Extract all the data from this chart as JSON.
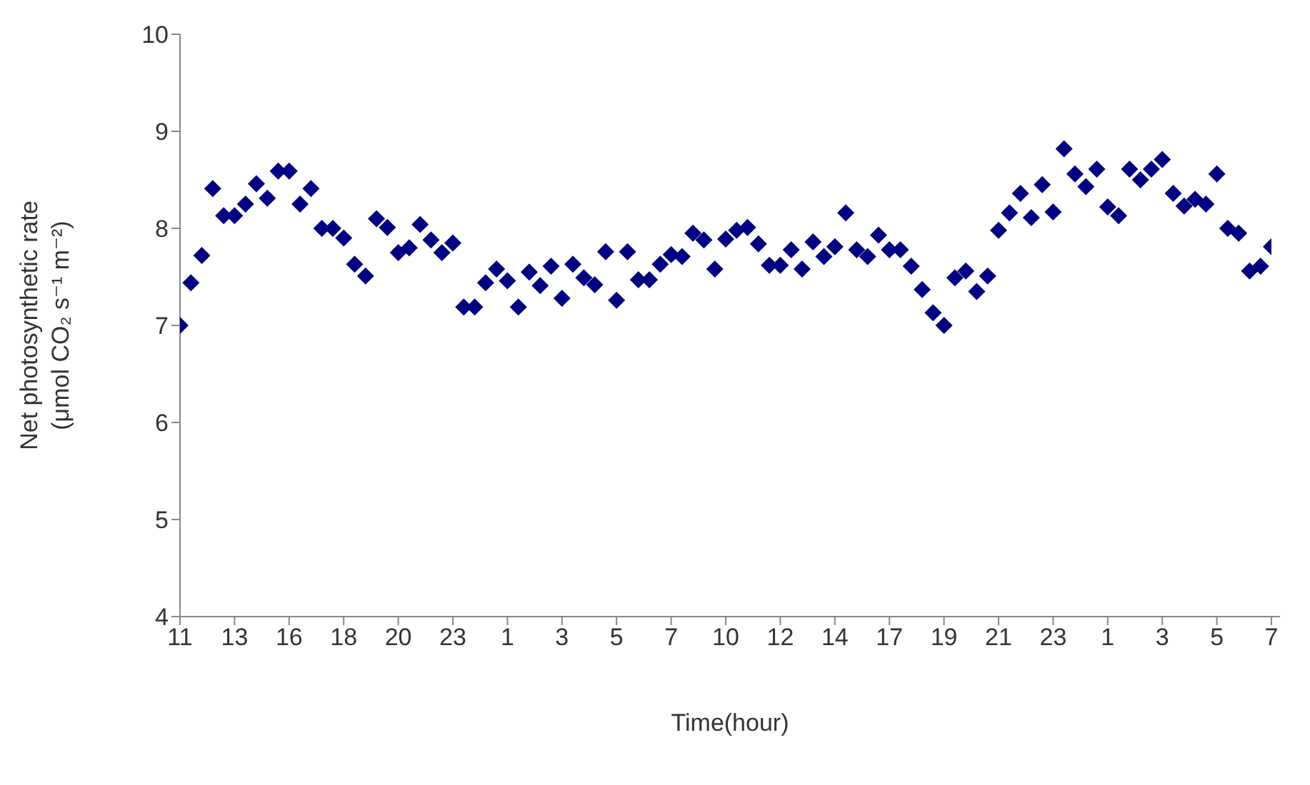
{
  "chart_data": {
    "type": "scatter",
    "xlabel": "Time(hour)",
    "ylabel": "Net photosynthetic rate\n(μmol CO₂ s⁻¹ m⁻²)",
    "categories": [
      "11",
      null,
      null,
      null,
      null,
      "13",
      null,
      null,
      null,
      null,
      "16",
      null,
      null,
      null,
      null,
      "18",
      null,
      null,
      null,
      null,
      "20",
      null,
      null,
      null,
      null,
      "23",
      null,
      null,
      null,
      null,
      "1",
      null,
      null,
      null,
      null,
      "3",
      null,
      null,
      null,
      null,
      "5",
      null,
      null,
      null,
      null,
      "7",
      null,
      null,
      null,
      null,
      "10",
      null,
      null,
      null,
      null,
      "12",
      null,
      null,
      null,
      null,
      "14",
      null,
      null,
      null,
      null,
      "17",
      null,
      null,
      null,
      null,
      "19",
      null,
      null,
      null,
      null,
      "21",
      null,
      null,
      null,
      null,
      "23",
      null,
      null,
      null,
      null,
      "1",
      null,
      null,
      null,
      null,
      "3",
      null,
      null,
      null,
      null,
      "5",
      null,
      null,
      null,
      null,
      "7"
    ],
    "series": [
      {
        "color": "#000080",
        "values": [
          7.0,
          7.44,
          7.72,
          8.41,
          8.13,
          8.13,
          8.25,
          8.46,
          8.31,
          8.59,
          8.59,
          8.25,
          8.41,
          8.0,
          8.0,
          7.9,
          7.63,
          7.51,
          8.1,
          8.01,
          7.75,
          7.8,
          8.04,
          7.88,
          7.75,
          7.85,
          7.19,
          7.19,
          7.44,
          7.58,
          7.46,
          7.19,
          7.55,
          7.41,
          7.61,
          7.28,
          7.63,
          7.49,
          7.42,
          7.76,
          7.26,
          7.76,
          7.47,
          7.47,
          7.63,
          7.73,
          7.71,
          7.95,
          7.88,
          7.58,
          7.89,
          7.98,
          8.01,
          7.84,
          7.62,
          7.62,
          7.78,
          7.58,
          7.86,
          7.71,
          7.81,
          8.16,
          7.78,
          7.71,
          7.93,
          7.78,
          7.78,
          7.61,
          7.37,
          7.13,
          7.0,
          7.49,
          7.56,
          7.35,
          7.51,
          7.98,
          8.16,
          8.36,
          8.11,
          8.45,
          8.17,
          8.82,
          8.56,
          8.43,
          8.61,
          8.22,
          8.13,
          8.61,
          8.5,
          8.61,
          8.71,
          8.36,
          8.23,
          8.3,
          8.25,
          8.56,
          8.0,
          7.95,
          7.56,
          7.61,
          7.81
        ]
      }
    ],
    "ylim": [
      4,
      10
    ],
    "yticks": [
      4,
      5,
      6,
      7,
      8,
      9,
      10
    ],
    "grid": false,
    "legend": false,
    "marker": "diamond"
  }
}
